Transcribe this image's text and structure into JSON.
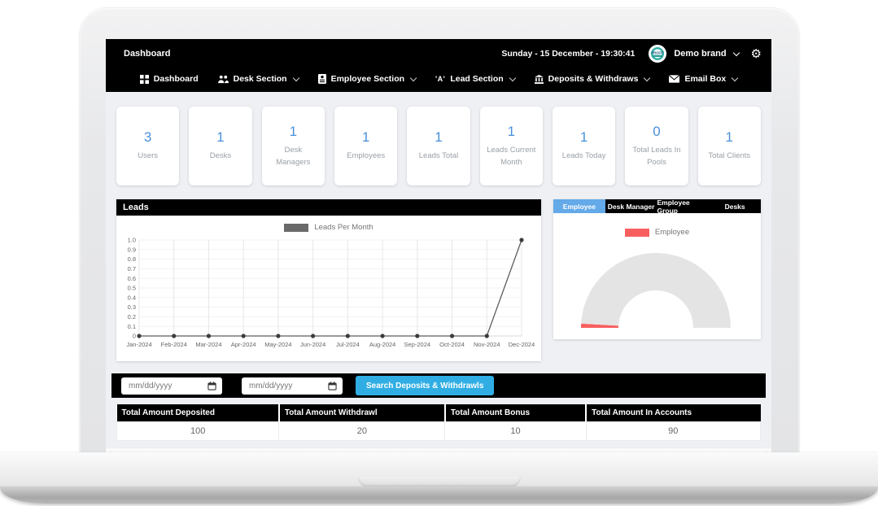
{
  "header": {
    "page_title": "Dashboard",
    "datetime": "Sunday - 15 December - 19:30:41",
    "brand": "Demo brand",
    "avatar_text": "PROFIT",
    "nav": [
      {
        "label": "Dashboard",
        "icon": "grid-icon",
        "dropdown": false
      },
      {
        "label": "Desk Section",
        "icon": "team-icon",
        "dropdown": true
      },
      {
        "label": "Employee Section",
        "icon": "badge-icon",
        "dropdown": true
      },
      {
        "label": "Lead Section",
        "icon": "lead-icon",
        "icon_glyph": "'A'",
        "dropdown": true
      },
      {
        "label": "Deposits & Withdraws",
        "icon": "bank-icon",
        "dropdown": true
      },
      {
        "label": "Email Box",
        "icon": "email-icon",
        "dropdown": true
      }
    ]
  },
  "glyphs": {
    "gear": "⚙",
    "scroll_left": "◂",
    "scroll_right": "▸"
  },
  "stats": {
    "cards": [
      {
        "value": "3",
        "label": "Users"
      },
      {
        "value": "1",
        "label": "Desks"
      },
      {
        "value": "1",
        "label": "Desk Managers"
      },
      {
        "value": "1",
        "label": "Employees"
      },
      {
        "value": "1",
        "label": "Leads Total"
      },
      {
        "value": "1",
        "label": "Leads Current Month"
      },
      {
        "value": "1",
        "label": "Leads Today"
      },
      {
        "value": "0",
        "label": "Total Leads In Pools"
      },
      {
        "value": "1",
        "label": "Total Clients"
      }
    ]
  },
  "leads_panel": {
    "title": "Leads",
    "legend": "Leads Per Month"
  },
  "employee_panel": {
    "tabs": [
      {
        "label": "Employee",
        "active": true
      },
      {
        "label": "Desk Manager",
        "active": false
      },
      {
        "label": "Employee Group",
        "active": false
      },
      {
        "label": "Desks",
        "active": false
      }
    ],
    "legend": "Employee"
  },
  "search": {
    "from_placeholder": "mm/dd/yyyy",
    "to_placeholder": "mm/dd/yyyy",
    "button_label": "Search Deposits & Withdrawls"
  },
  "summary_table": {
    "columns": [
      {
        "header": "Total Amount Deposited",
        "value": "100"
      },
      {
        "header": "Total Amount Withdrawl",
        "value": "20"
      },
      {
        "header": "Total Amount Bonus",
        "value": "10"
      },
      {
        "header": "Total Amount In Accounts",
        "value": "90"
      }
    ]
  },
  "chart_data": [
    {
      "type": "line",
      "title": "Leads",
      "legend": [
        "Leads Per Month"
      ],
      "x": [
        "Jan-2024",
        "Feb-2024",
        "Mar-2024",
        "Apr-2024",
        "May-2024",
        "Jun-2024",
        "Jul-2024",
        "Aug-2024",
        "Sep-2024",
        "Oct-2024",
        "Nov-2024",
        "Dec-2024"
      ],
      "series": [
        {
          "name": "Leads Per Month",
          "values": [
            0,
            0,
            0,
            0,
            0,
            0,
            0,
            0,
            0,
            0,
            0,
            1
          ]
        }
      ],
      "ylim": [
        0,
        1.0
      ],
      "yticks": [
        "1.0",
        "0.9",
        "0.8",
        "0.7",
        "0.6",
        "0.5",
        "0.4",
        "0.3",
        "0.2",
        "0.1",
        "0"
      ],
      "grid": true,
      "line_color": "#5d5d5d",
      "marker_color": "#3c3c3c",
      "legend_swatch_color": "#696969",
      "legend_position": "top-center"
    },
    {
      "type": "gauge",
      "legend": "Employee",
      "fraction": 0.018,
      "color": "#f8605f",
      "track_color": "#e4e4e4",
      "shape": "half-donut"
    }
  ],
  "colors": {
    "accent_number_blue": "#4a90d9",
    "active_tab_blue": "#64a9e8",
    "search_button_cyan": "#30aee4",
    "gauge_red": "#f8605f",
    "bar_black": "#000000"
  }
}
